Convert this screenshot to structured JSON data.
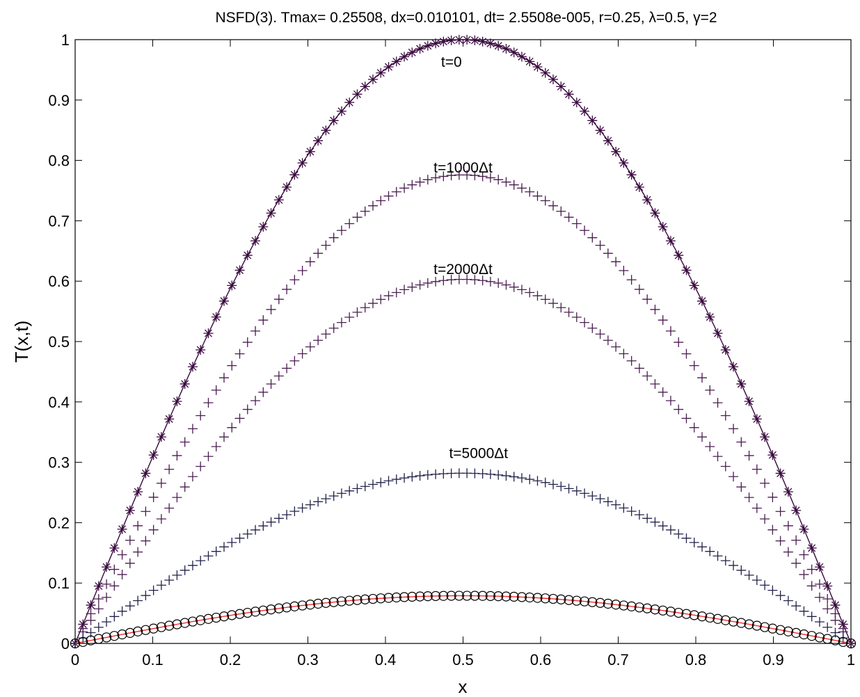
{
  "chart_data": {
    "type": "line",
    "title": "NSFD(3). Tmax= 0.25508, dx=0.010101, dt= 2.5508e-005, r=0.25, λ=0.5, γ=2",
    "xlabel": "x",
    "ylabel": "T(x,t)",
    "xlim": [
      0,
      1
    ],
    "ylim": [
      0,
      1
    ],
    "xticks": [
      "0",
      "0.1",
      "0.2",
      "0.3",
      "0.4",
      "0.5",
      "0.6",
      "0.7",
      "0.8",
      "0.9",
      "1"
    ],
    "yticks": [
      "0",
      "0.1",
      "0.2",
      "0.3",
      "0.4",
      "0.5",
      "0.6",
      "0.7",
      "0.8",
      "0.9",
      "1"
    ],
    "grid": false,
    "n_points": 100,
    "series": [
      {
        "label": "t=0",
        "label_at": [
          0.485,
          0.955
        ],
        "peak": 1.0,
        "marker": "star",
        "line": true,
        "color": "#3a0a3f"
      },
      {
        "label": "t=1000Δt",
        "label_at": [
          0.5,
          0.78
        ],
        "peak": 0.776,
        "marker": "plus",
        "line": false,
        "color": "#4a1a4f"
      },
      {
        "label": "t=2000Δt",
        "label_at": [
          0.5,
          0.612
        ],
        "peak": 0.603,
        "marker": "plus",
        "line": false,
        "color": "#4a1f50"
      },
      {
        "label": "t=5000Δt",
        "label_at": [
          0.52,
          0.307
        ],
        "peak": 0.282,
        "marker": "plus",
        "line": false,
        "color": "#22224a"
      },
      {
        "label": "",
        "peak": 0.079,
        "marker": "circle",
        "line": true,
        "color": "#000000",
        "line_color": "#ff2a2a"
      }
    ]
  }
}
